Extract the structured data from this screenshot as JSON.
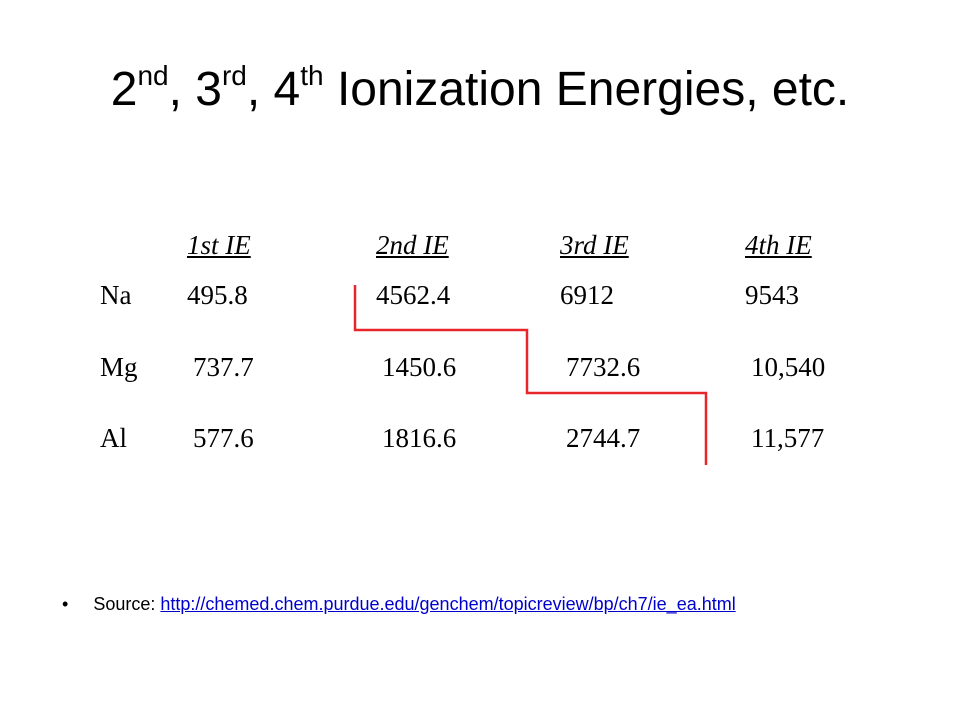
{
  "title": [
    "2",
    "nd",
    ", 3",
    "rd",
    ", 4",
    "th",
    " Ionization Energies, etc."
  ],
  "table": {
    "headers": [
      "1st IE",
      "2nd IE",
      "3rd IE",
      "4th IE"
    ],
    "rows": [
      [
        "Na",
        "495.8",
        "4562.4",
        "6912",
        "9543"
      ],
      [
        "Mg",
        "737.7",
        "1450.6",
        "7732.6",
        "10,540"
      ],
      [
        "Al",
        "577.6",
        "1816.6",
        "2744.7",
        "11,577"
      ]
    ]
  },
  "source": {
    "label": "Source:",
    "url": "http://chemed.chem.purdue.edu/genchem/topicreview/bp/ch7/ie_ea.html"
  }
}
